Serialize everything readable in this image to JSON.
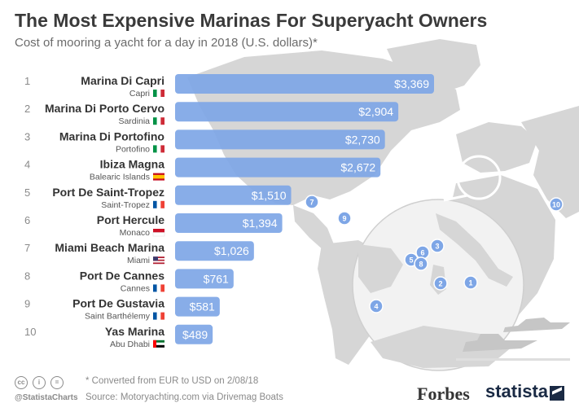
{
  "title": "The Most Expensive Marinas For Superyacht Owners",
  "subtitle": "Cost of mooring a yacht for a day in 2018 (U.S. dollars)*",
  "footnote": "* Converted from EUR to USD on 2/08/18",
  "source": "Source: Motoryachting.com via Drivemag Boats",
  "handle": "@StatistaCharts",
  "brand_forbes": "Forbes",
  "brand_statista": "statista",
  "colors": {
    "bar": "#7ea6e6",
    "rank": "#8a8a8a",
    "name": "#333333",
    "location": "#555555",
    "map": "#d3d3d3",
    "marker": "#7ea6e6"
  },
  "chart_data": {
    "type": "bar",
    "orientation": "horizontal",
    "ranks": [
      "1",
      "2",
      "3",
      "4",
      "5",
      "6",
      "7",
      "8",
      "9",
      "10"
    ],
    "categories": [
      "Marina Di Capri",
      "Marina Di Porto Cervo",
      "Marina Di Portofino",
      "Ibiza Magna",
      "Port De Saint-Tropez",
      "Port Hercule",
      "Miami Beach Marina",
      "Port De Cannes",
      "Port De Gustavia",
      "Yas Marina"
    ],
    "locations": [
      "Capri",
      "Sardinia",
      "Portofino",
      "Balearic Islands",
      "Saint-Tropez",
      "Monaco",
      "Miami",
      "Cannes",
      "Saint Barthélemy",
      "Abu Dhabi"
    ],
    "flags": [
      "italy",
      "italy",
      "italy",
      "spain",
      "france",
      "monaco",
      "usa",
      "france",
      "france",
      "uae"
    ],
    "values": [
      3369,
      2904,
      2730,
      2672,
      1510,
      1394,
      1026,
      761,
      581,
      489
    ],
    "value_labels": [
      "$3,369",
      "$2,904",
      "$2,730",
      "$2,672",
      "$1,510",
      "$1,394",
      "$1,026",
      "$761",
      "$581",
      "$489"
    ],
    "xlim": [
      0,
      3369
    ]
  },
  "map_markers": [
    {
      "label": "1"
    },
    {
      "label": "2"
    },
    {
      "label": "3"
    },
    {
      "label": "4"
    },
    {
      "label": "5"
    },
    {
      "label": "6"
    },
    {
      "label": "7"
    },
    {
      "label": "8"
    },
    {
      "label": "9"
    },
    {
      "label": "10"
    }
  ]
}
